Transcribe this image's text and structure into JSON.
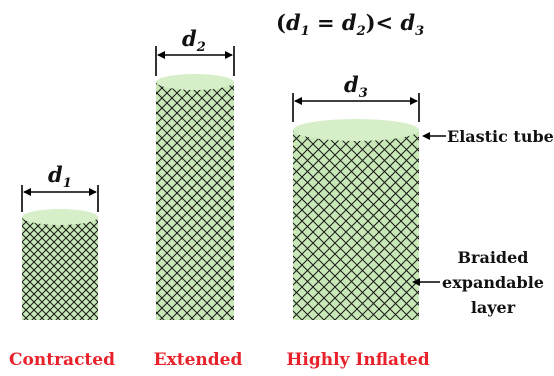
{
  "equation": {
    "prefix": "(",
    "d1": "d",
    "d1_sub": "1",
    "eq": " = ",
    "d2": "d",
    "d2_sub": "2",
    "close_lt": ")< ",
    "d3": "d",
    "d3_sub": "3"
  },
  "cylinders": [
    {
      "symbol": "d",
      "sub": "1",
      "caption": "Contracted"
    },
    {
      "symbol": "d",
      "sub": "2",
      "caption": "Extended"
    },
    {
      "symbol": "d",
      "sub": "3",
      "caption": "Highly Inflated"
    }
  ],
  "annotations": {
    "elastic_tube": "Elastic tube",
    "braided_line1": "Braided",
    "braided_line2": "expandable",
    "braided_line3": "layer"
  },
  "colors": {
    "caption": "#e8212a",
    "tube_fill": "#c9e8b8",
    "tube_top": "#d7efc8",
    "mesh": "#1a1a1a"
  }
}
